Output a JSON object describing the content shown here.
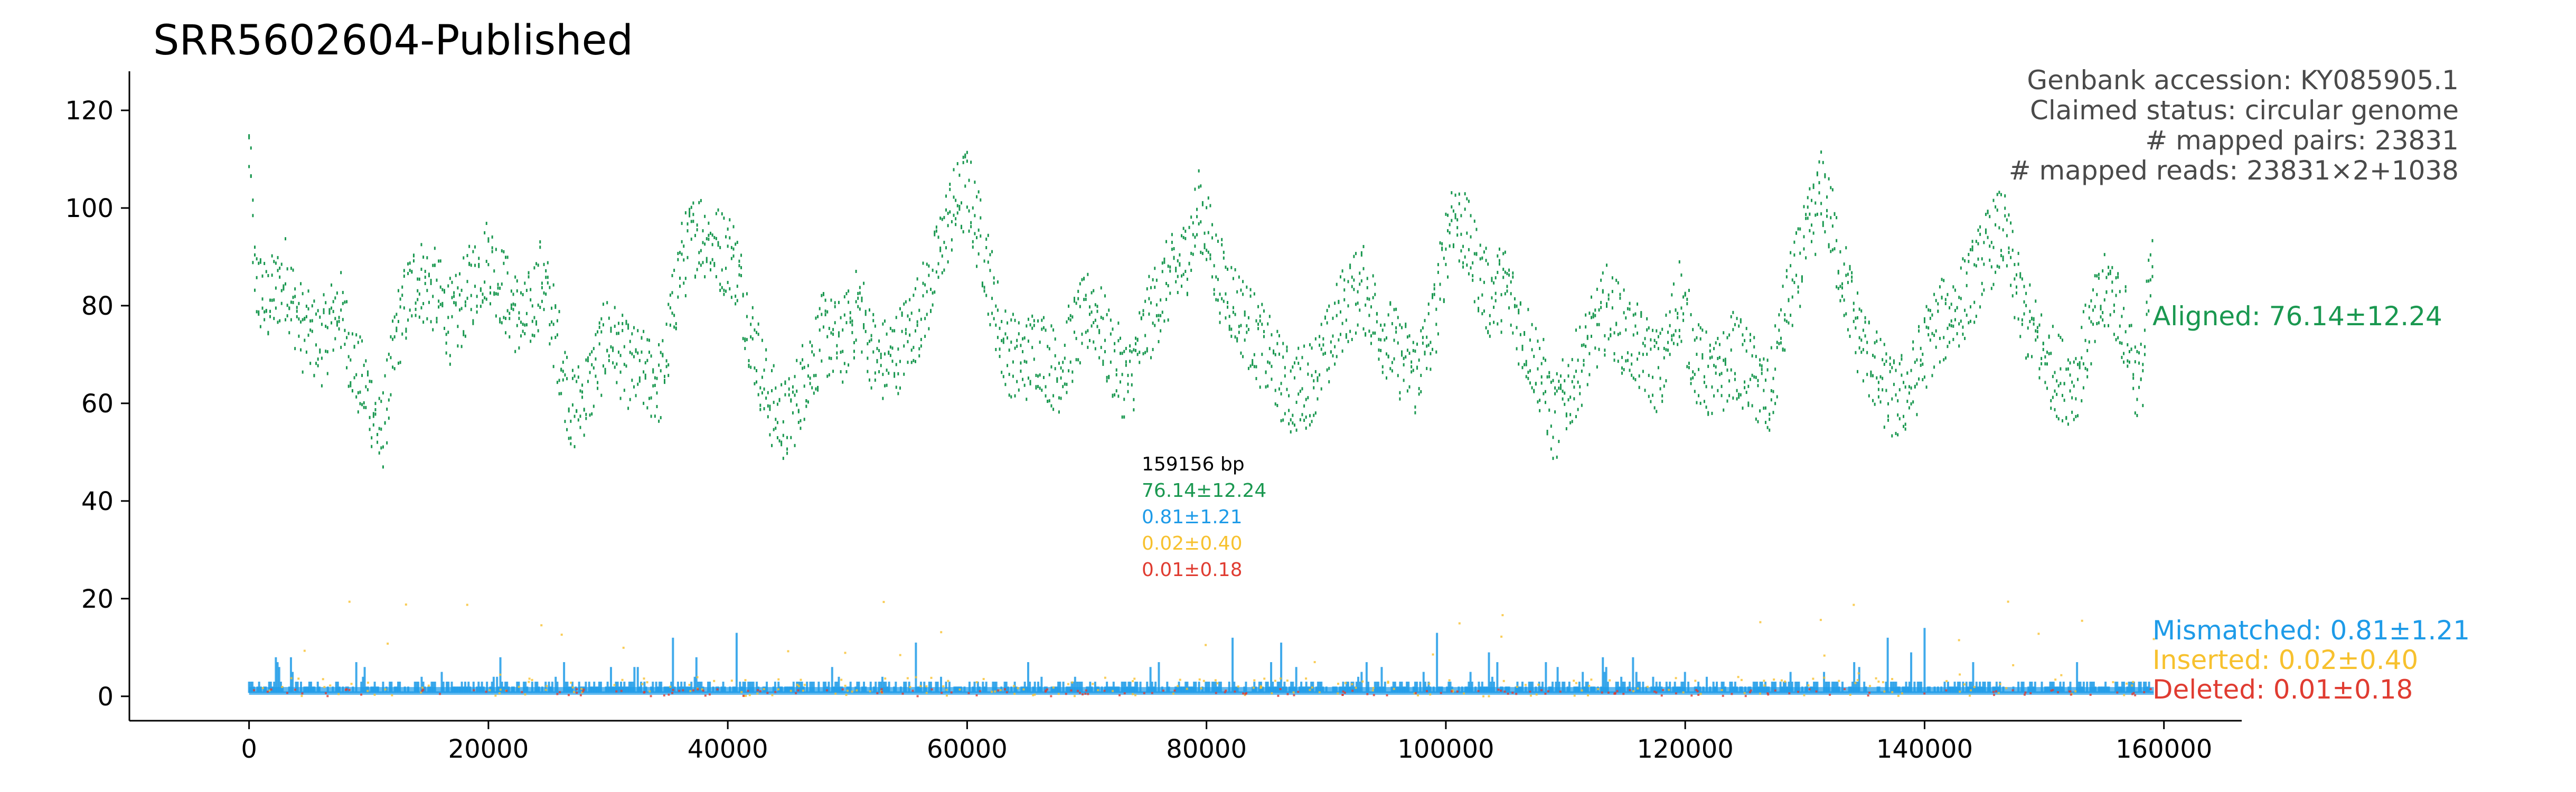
{
  "chart_data": {
    "type": "scatter",
    "title": "SRR5602604-Published",
    "xlabel": "",
    "ylabel": "",
    "xlim": [
      -10000,
      166500
    ],
    "ylim": [
      -5,
      128
    ],
    "x_ticks": [
      "0",
      "20000",
      "40000",
      "60000",
      "80000",
      "100000",
      "120000",
      "140000",
      "160000"
    ],
    "y_ticks": [
      "0",
      "20",
      "40",
      "60",
      "80",
      "100",
      "120"
    ],
    "genome_length_bp": 159156,
    "annotations": {
      "accession": "Genbank accession: KY085905.1",
      "status": "Claimed status: circular genome",
      "pairs": "# mapped pairs: 23831",
      "reads": "# mapped reads: 23831×2+1038"
    },
    "center_stats": {
      "length": "159156 bp",
      "aligned": "76.14±12.24",
      "mismatched": "0.81±1.21",
      "inserted": "0.02±0.40",
      "deleted": "0.01±0.18"
    },
    "series": [
      {
        "name": "Aligned: 76.14±12.24",
        "color": "#1a9850",
        "mean": 76.14,
        "sd": 12.24,
        "profile_x": [
          0,
          500,
          1500,
          3000,
          4500,
          6000,
          7500,
          9000,
          10000,
          11000,
          12500,
          14000,
          15500,
          17000,
          18500,
          20000,
          21500,
          23000,
          24500,
          26000,
          27000,
          28500,
          30000,
          31500,
          33000,
          34500,
          36000,
          37500,
          39000,
          40500,
          42000,
          43500,
          45000,
          46500,
          48000,
          49500,
          51000,
          52500,
          54000,
          55500,
          57000,
          58500,
          60000,
          61500,
          63000,
          64500,
          66000,
          67500,
          69000,
          70500,
          72000,
          73500,
          75000,
          76500,
          78000,
          79500,
          81000,
          82500,
          84000,
          85500,
          87000,
          88500,
          90000,
          91500,
          93000,
          94500,
          96000,
          97500,
          99000,
          100500,
          102000,
          103500,
          105000,
          106500,
          108000,
          109000,
          110500,
          112000,
          113500,
          115000,
          116500,
          118000,
          119500,
          121000,
          122500,
          124000,
          125500,
          127000,
          128500,
          130000,
          131500,
          133000,
          134500,
          136000,
          137500,
          139000,
          140500,
          142000,
          143500,
          145000,
          146500,
          148000,
          149500,
          151000,
          152500,
          154000,
          155500,
          157000,
          158000,
          159156
        ],
        "profile_y": [
          112,
          85,
          80,
          86,
          75,
          72,
          80,
          66,
          62,
          52,
          76,
          86,
          83,
          76,
          84,
          90,
          82,
          76,
          86,
          70,
          58,
          64,
          74,
          68,
          66,
          64,
          88,
          96,
          92,
          90,
          74,
          60,
          56,
          66,
          74,
          72,
          80,
          68,
          70,
          76,
          84,
          98,
          104,
          90,
          72,
          68,
          72,
          66,
          74,
          80,
          70,
          64,
          76,
          84,
          88,
          100,
          86,
          80,
          74,
          68,
          62,
          64,
          70,
          80,
          84,
          76,
          70,
          66,
          76,
          100,
          92,
          82,
          84,
          74,
          66,
          56,
          64,
          72,
          80,
          74,
          70,
          66,
          82,
          68,
          64,
          70,
          66,
          60,
          80,
          92,
          104,
          88,
          74,
          66,
          60,
          64,
          74,
          78,
          82,
          90,
          96,
          80,
          72,
          66,
          64,
          76,
          84,
          74,
          62,
          92
        ],
        "spread": 9
      },
      {
        "name": "Mismatched: 0.81±1.21",
        "color": "#1e9be8",
        "mean": 0.81,
        "sd": 1.21
      },
      {
        "name": "Inserted: 0.02±0.40",
        "color": "#f7c12e",
        "mean": 0.02,
        "sd": 0.4
      },
      {
        "name": "Deleted: 0.01±0.18",
        "color": "#e03c31",
        "mean": 0.01,
        "sd": 0.18
      }
    ]
  }
}
